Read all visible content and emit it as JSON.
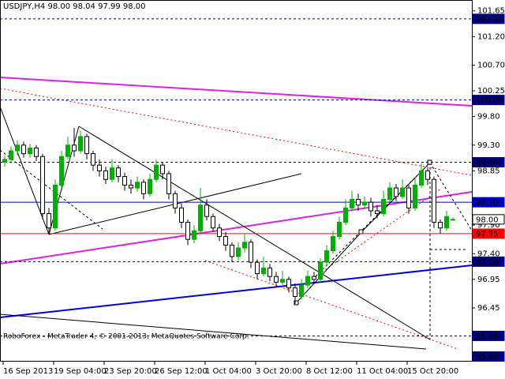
{
  "chart_data": {
    "type": "candlestick",
    "title": "USDJPY,H4 98.00 98.04 97.99 98.00",
    "footer": "RoboForex - MetaTrader 4, © 2001-2013, MetaQuotes Software Corp.",
    "up_color": "#00b000",
    "down_color": "#000000",
    "categories": [
      "16 Sep 2013",
      null,
      null,
      null,
      null,
      null,
      null,
      null,
      "19 Sep 04:00",
      null,
      null,
      null,
      null,
      null,
      null,
      null,
      "23 Sep 20:00",
      null,
      null,
      null,
      null,
      null,
      null,
      null,
      "26 Sep 12:00",
      null,
      null,
      null,
      null,
      null,
      null,
      null,
      "1 Oct 04:00",
      null,
      null,
      null,
      null,
      null,
      null,
      null,
      "3 Oct 20:00",
      null,
      null,
      null,
      null,
      null,
      null,
      null,
      "8 Oct 12:00",
      null,
      null,
      null,
      null,
      null,
      null,
      null,
      "11 Oct 04:00",
      null,
      null,
      null,
      null,
      null,
      null,
      null,
      "15 Oct 20:00",
      null,
      null,
      null,
      null,
      null,
      null,
      null
    ],
    "open": [
      99.0,
      99.05,
      99.2,
      99.3,
      99.15,
      99.25,
      99.1,
      98.1,
      97.85,
      98.6,
      99.1,
      99.3,
      99.2,
      99.45,
      99.15,
      98.95,
      98.85,
      98.7,
      98.9,
      98.75,
      98.6,
      98.55,
      98.65,
      98.45,
      98.7,
      98.95,
      98.8,
      98.45,
      98.2,
      97.95,
      97.65,
      97.8,
      98.25,
      98.05,
      97.85,
      97.7,
      97.55,
      97.35,
      97.5,
      97.6,
      97.25,
      97.05,
      97.15,
      97.0,
      96.9,
      96.95,
      96.8,
      96.65,
      96.85,
      97.0,
      96.95,
      97.25,
      97.45,
      97.7,
      97.95,
      98.2,
      98.35,
      98.25,
      98.3,
      98.15,
      98.1,
      98.35,
      98.55,
      98.4,
      98.55,
      98.2,
      98.6,
      98.85,
      98.7,
      97.95,
      97.85,
      98.0
    ],
    "high": [
      99.12,
      99.28,
      99.38,
      99.36,
      99.32,
      99.3,
      99.15,
      98.2,
      98.7,
      99.2,
      99.45,
      99.6,
      99.55,
      99.5,
      99.2,
      99.05,
      98.92,
      99.05,
      98.95,
      98.82,
      98.7,
      98.75,
      98.7,
      98.8,
      99.05,
      99.0,
      98.85,
      98.5,
      98.28,
      98.0,
      97.9,
      98.55,
      98.35,
      98.1,
      97.92,
      97.78,
      97.6,
      97.6,
      97.75,
      97.65,
      97.3,
      97.35,
      97.22,
      97.08,
      97.1,
      97.0,
      96.88,
      96.95,
      97.1,
      97.08,
      97.32,
      97.55,
      97.8,
      98.05,
      98.35,
      98.5,
      98.45,
      98.4,
      98.38,
      98.25,
      98.5,
      98.65,
      98.62,
      98.7,
      98.6,
      98.75,
      98.98,
      98.9,
      98.75,
      98.0,
      98.15,
      98.04
    ],
    "low": [
      98.92,
      98.98,
      99.12,
      99.08,
      99.08,
      99.02,
      98.0,
      97.75,
      97.8,
      98.55,
      99.05,
      99.1,
      99.15,
      99.05,
      98.85,
      98.75,
      98.62,
      98.65,
      98.65,
      98.5,
      98.45,
      98.48,
      98.35,
      98.4,
      98.65,
      98.7,
      98.35,
      98.1,
      97.85,
      97.55,
      97.58,
      97.75,
      97.98,
      97.78,
      97.62,
      97.45,
      97.25,
      97.28,
      97.42,
      97.15,
      96.95,
      97.0,
      96.92,
      96.82,
      96.85,
      96.72,
      96.52,
      96.6,
      96.8,
      96.88,
      96.9,
      97.2,
      97.4,
      97.65,
      97.9,
      98.15,
      98.15,
      98.18,
      98.05,
      98.02,
      98.05,
      98.3,
      98.32,
      98.35,
      98.1,
      98.15,
      98.55,
      98.6,
      97.85,
      97.75,
      97.8,
      97.99
    ],
    "close": [
      99.05,
      99.2,
      99.3,
      99.15,
      99.25,
      99.1,
      98.1,
      97.85,
      98.6,
      99.1,
      99.3,
      99.2,
      99.45,
      99.15,
      98.95,
      98.85,
      98.7,
      98.9,
      98.75,
      98.6,
      98.55,
      98.65,
      98.45,
      98.7,
      98.95,
      98.8,
      98.45,
      98.2,
      97.95,
      97.65,
      97.8,
      98.25,
      98.05,
      97.85,
      97.7,
      97.55,
      97.35,
      97.5,
      97.6,
      97.25,
      97.05,
      97.15,
      97.0,
      96.9,
      96.95,
      96.8,
      96.65,
      96.85,
      97.0,
      96.95,
      97.25,
      97.45,
      97.7,
      97.95,
      98.2,
      98.35,
      98.25,
      98.3,
      98.15,
      98.1,
      98.35,
      98.55,
      98.4,
      98.55,
      98.2,
      98.6,
      98.85,
      98.7,
      97.95,
      97.85,
      98.05,
      98.0
    ],
    "ylim": [
      95.51,
      101.84
    ],
    "yticks": [
      101.65,
      {
        "value": 101.2,
        "label": "101.20"
      },
      {
        "value": 100.7,
        "label": "100.70"
      },
      100.25,
      {
        "value": 99.8,
        "label": "99.80"
      },
      {
        "value": 99.3,
        "label": "99.30"
      },
      98.85,
      {
        "value": 97.9,
        "label": "97.90"
      },
      {
        "value": 97.4,
        "label": "97.40"
      },
      96.95,
      96.45
    ],
    "levels": [
      {
        "value": 101.51,
        "color": "#000080",
        "line": "dashed"
      },
      {
        "value": 100.09,
        "color": "#000080",
        "line": "dashed"
      },
      {
        "value": {
          "value": 99.0,
          "label": "99.00"
        },
        "color": "#000080",
        "line": "dashed"
      },
      {
        "value": {
          "value": 98.3,
          "label": "98.30"
        },
        "color": "#0000c0",
        "line": "solid"
      },
      {
        "value": {
          "value": 98.0,
          "label": "98.00"
        },
        "color": "#ffffff",
        "line": "none"
      },
      {
        "value": 97.75,
        "color": "#ff0000",
        "line": "solid"
      },
      {
        "value": 97.26,
        "color": "#000080",
        "line": "dashed"
      },
      {
        "value": 95.96,
        "color": "#000080",
        "line": "dashed"
      },
      {
        "value": {
          "value": 95.6,
          "label": "95.60"
        },
        "color": "#000080",
        "line": "none"
      }
    ]
  }
}
